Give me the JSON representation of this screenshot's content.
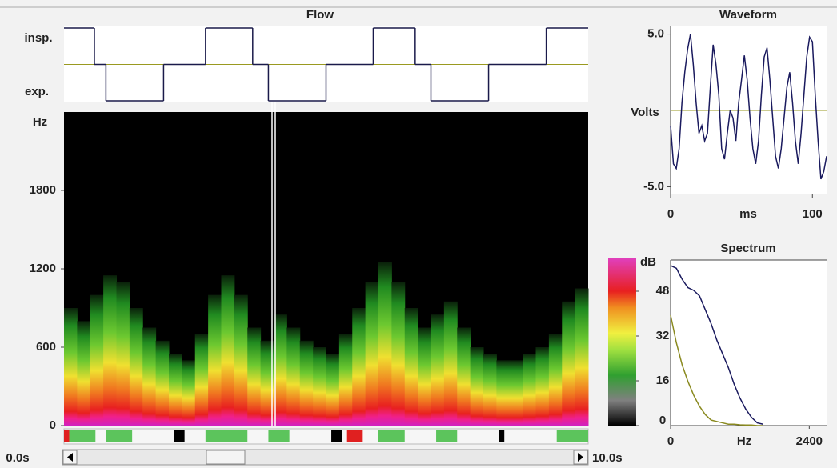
{
  "flow": {
    "title": "Flow",
    "insp_label": "insp.",
    "exp_label": "exp.",
    "color": "#1a1a4a",
    "zero_color": "#9a9a20",
    "t": [
      0,
      0.58,
      0.8,
      1.9,
      2.7,
      3.6,
      3.9,
      5.0,
      5.9,
      6.7,
      7.0,
      8.1,
      9.2,
      10
    ],
    "levels": [
      1,
      0,
      -1,
      0,
      1,
      0,
      -1,
      0,
      1,
      0,
      -1,
      0,
      1
    ]
  },
  "spectrogram": {
    "ylabel": "Hz",
    "ylim": [
      0,
      2400
    ],
    "yticks": [
      0,
      600,
      1200,
      1800
    ],
    "xlim": [
      0,
      10
    ],
    "cursor": 4.0,
    "t": [
      0,
      0.25,
      0.5,
      0.75,
      1.0,
      1.25,
      1.5,
      1.75,
      2.0,
      2.25,
      2.5,
      2.75,
      3.0,
      3.25,
      3.5,
      3.75,
      4.0,
      4.25,
      4.5,
      4.75,
      5.0,
      5.25,
      5.5,
      5.75,
      6.0,
      6.25,
      6.5,
      6.75,
      7.0,
      7.25,
      7.5,
      7.75,
      8.0,
      8.25,
      8.5,
      8.75,
      9.0,
      9.25,
      9.5,
      9.75
    ],
    "peak_hz": [
      900,
      800,
      1000,
      1150,
      1100,
      900,
      750,
      650,
      550,
      500,
      700,
      1000,
      1150,
      1000,
      750,
      650,
      850,
      750,
      650,
      600,
      550,
      700,
      900,
      1100,
      1250,
      1100,
      900,
      750,
      850,
      950,
      750,
      600,
      550,
      500,
      500,
      550,
      600,
      700,
      950,
      1050
    ]
  },
  "colorbar": {
    "label": "dB",
    "lim": [
      0,
      60
    ],
    "ticks": [
      0,
      16,
      32,
      48
    ]
  },
  "events": [
    {
      "start": 0.0,
      "end": 0.1,
      "color": "#e02020"
    },
    {
      "start": 0.1,
      "end": 0.6,
      "color": "#5cc45c"
    },
    {
      "start": 0.8,
      "end": 1.3,
      "color": "#5cc45c"
    },
    {
      "start": 2.1,
      "end": 2.3,
      "color": "#000000"
    },
    {
      "start": 2.7,
      "end": 3.5,
      "color": "#5cc45c"
    },
    {
      "start": 3.9,
      "end": 4.3,
      "color": "#5cc45c"
    },
    {
      "start": 5.1,
      "end": 5.3,
      "color": "#000000"
    },
    {
      "start": 5.4,
      "end": 5.7,
      "color": "#e02020"
    },
    {
      "start": 6.0,
      "end": 6.5,
      "color": "#5cc45c"
    },
    {
      "start": 7.1,
      "end": 7.5,
      "color": "#5cc45c"
    },
    {
      "start": 8.3,
      "end": 8.4,
      "color": "#000000"
    },
    {
      "start": 9.4,
      "end": 10.0,
      "color": "#5cc45c"
    }
  ],
  "scrollbar": {
    "start_label": "0.0s",
    "end_label": "10.0s"
  },
  "waveform": {
    "title": "Waveform",
    "ylabel": "Volts",
    "xlabel": "ms",
    "xlim": [
      0,
      110
    ],
    "ylim": [
      -5.5,
      5.5
    ],
    "xticks": [
      0,
      100
    ],
    "yticks": [
      {
        "value": 5,
        "label": "5.0"
      },
      {
        "value": -5,
        "label": "-5.0"
      }
    ],
    "color": "#1a1a5e",
    "zero_color": "#9a9a20",
    "x": [
      0,
      2,
      4,
      6,
      8,
      10,
      12,
      14,
      16,
      18,
      20,
      22,
      24,
      26,
      28,
      30,
      32,
      34,
      36,
      38,
      40,
      42,
      44,
      46,
      48,
      50,
      52,
      54,
      56,
      58,
      60,
      62,
      64,
      66,
      68,
      70,
      72,
      74,
      76,
      78,
      80,
      82,
      84,
      86,
      88,
      90,
      92,
      94,
      96,
      98,
      100,
      102,
      104,
      106,
      108,
      110
    ],
    "values": [
      -1,
      -3.5,
      -3.8,
      -2.5,
      0.5,
      2.5,
      4.0,
      5.0,
      3.0,
      0.5,
      -1.5,
      -1.0,
      -2.0,
      -1.5,
      1.5,
      4.3,
      3.0,
      1.0,
      -2.5,
      -3.2,
      -1.5,
      0.0,
      -0.5,
      -2.0,
      0.5,
      2.0,
      3.6,
      2.0,
      -0.5,
      -2.5,
      -3.5,
      -2.0,
      1.0,
      3.5,
      4.1,
      2.0,
      -0.5,
      -3.0,
      -3.8,
      -2.5,
      -0.5,
      1.5,
      2.5,
      0.5,
      -2.0,
      -3.5,
      -1.5,
      1.0,
      3.5,
      4.8,
      4.5,
      1.0,
      -2.0,
      -4.5,
      -4.0,
      -3.0
    ]
  },
  "spectrum": {
    "title": "Spectrum",
    "xlabel": "Hz",
    "xlim": [
      0,
      2700
    ],
    "xticks": [
      0,
      2400
    ],
    "ylim": [
      0,
      60
    ],
    "x": [
      0,
      100,
      200,
      300,
      400,
      500,
      600,
      700,
      800,
      900,
      1000,
      1100,
      1200,
      1300,
      1400,
      1500,
      1600
    ],
    "series": [
      {
        "color": "#8a8a20",
        "values": [
          40,
          30,
          22,
          16,
          11,
          7,
          4,
          2,
          1.5,
          1,
          0.5,
          0.5,
          0.3,
          0.2,
          0.2,
          0,
          0
        ]
      },
      {
        "color": "#1a1a5e",
        "values": [
          58,
          57,
          53,
          50,
          49,
          47,
          42,
          37,
          31,
          26,
          21,
          15,
          10,
          6,
          3,
          1,
          0.5
        ]
      }
    ]
  }
}
